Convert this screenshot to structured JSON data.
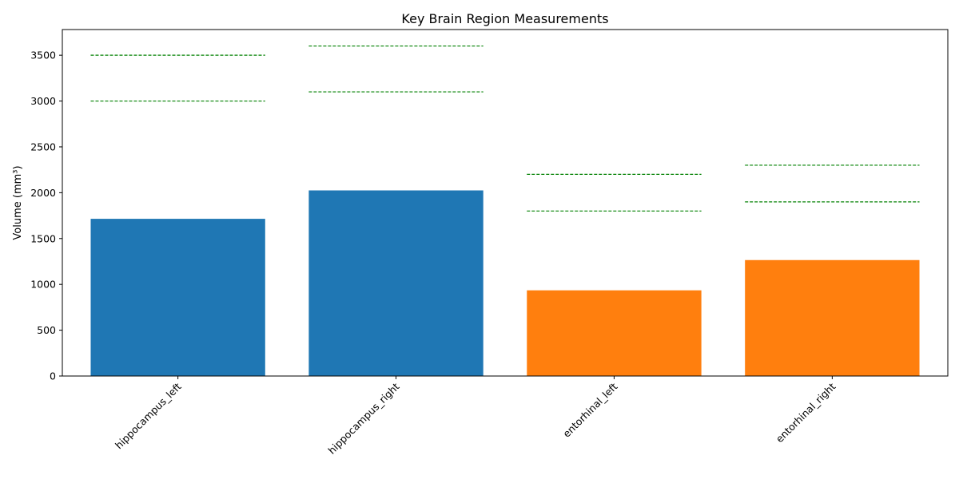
{
  "chart_data": {
    "type": "bar",
    "title": "Key Brain Region Measurements",
    "xlabel": "",
    "ylabel": "Volume (mm³)",
    "ylim": [
      0,
      3780
    ],
    "yticks": [
      0,
      500,
      1000,
      1500,
      2000,
      2500,
      3000,
      3500
    ],
    "categories": [
      "hippocampus_left",
      "hippocampus_right",
      "entorhinal_left",
      "entorhinal_right"
    ],
    "values": [
      1715,
      2025,
      935,
      1265
    ],
    "bar_colors": [
      "#1f77b4",
      "#1f77b4",
      "#ff7f0e",
      "#ff7f0e"
    ],
    "reference_ranges": [
      {
        "low": 3000,
        "high": 3500
      },
      {
        "low": 3100,
        "high": 3600
      },
      {
        "low": 1800,
        "high": 2200
      },
      {
        "low": 1900,
        "high": 2300
      }
    ],
    "reference_color": "#008000",
    "grid": false,
    "x_tick_rotation": 45
  }
}
